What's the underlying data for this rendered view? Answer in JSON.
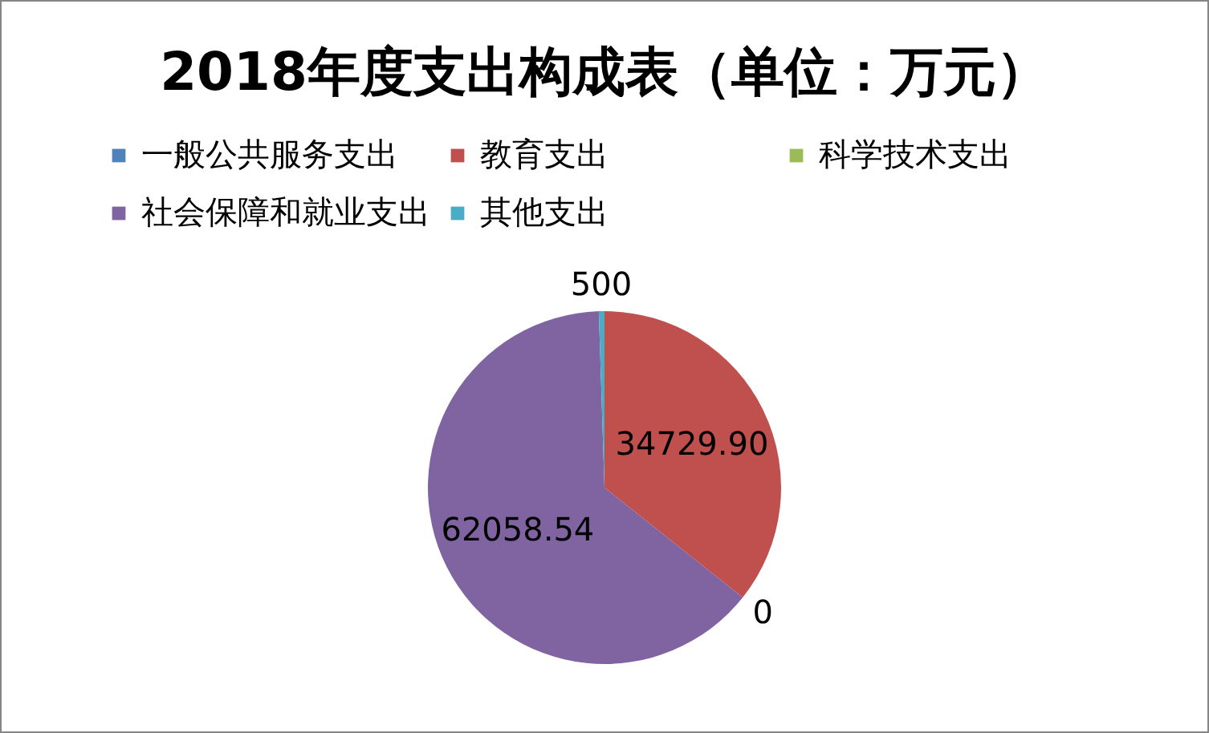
{
  "chart_data": {
    "type": "pie",
    "title": "2018年度支出构成表（单位：万元）",
    "categories": [
      "一般公共服务支出",
      "教育支出",
      "科学技术支出",
      "社会保障和就业支出",
      "其他支出"
    ],
    "values": [
      0,
      34729.9,
      0,
      62058.54,
      500
    ],
    "colors": [
      "#4f81bd",
      "#c0504d",
      "#9bbb59",
      "#8064a2",
      "#4bacc6"
    ],
    "value_labels": [
      null,
      "34729.90",
      "0",
      "62058.54",
      "500"
    ],
    "legend": "top"
  }
}
